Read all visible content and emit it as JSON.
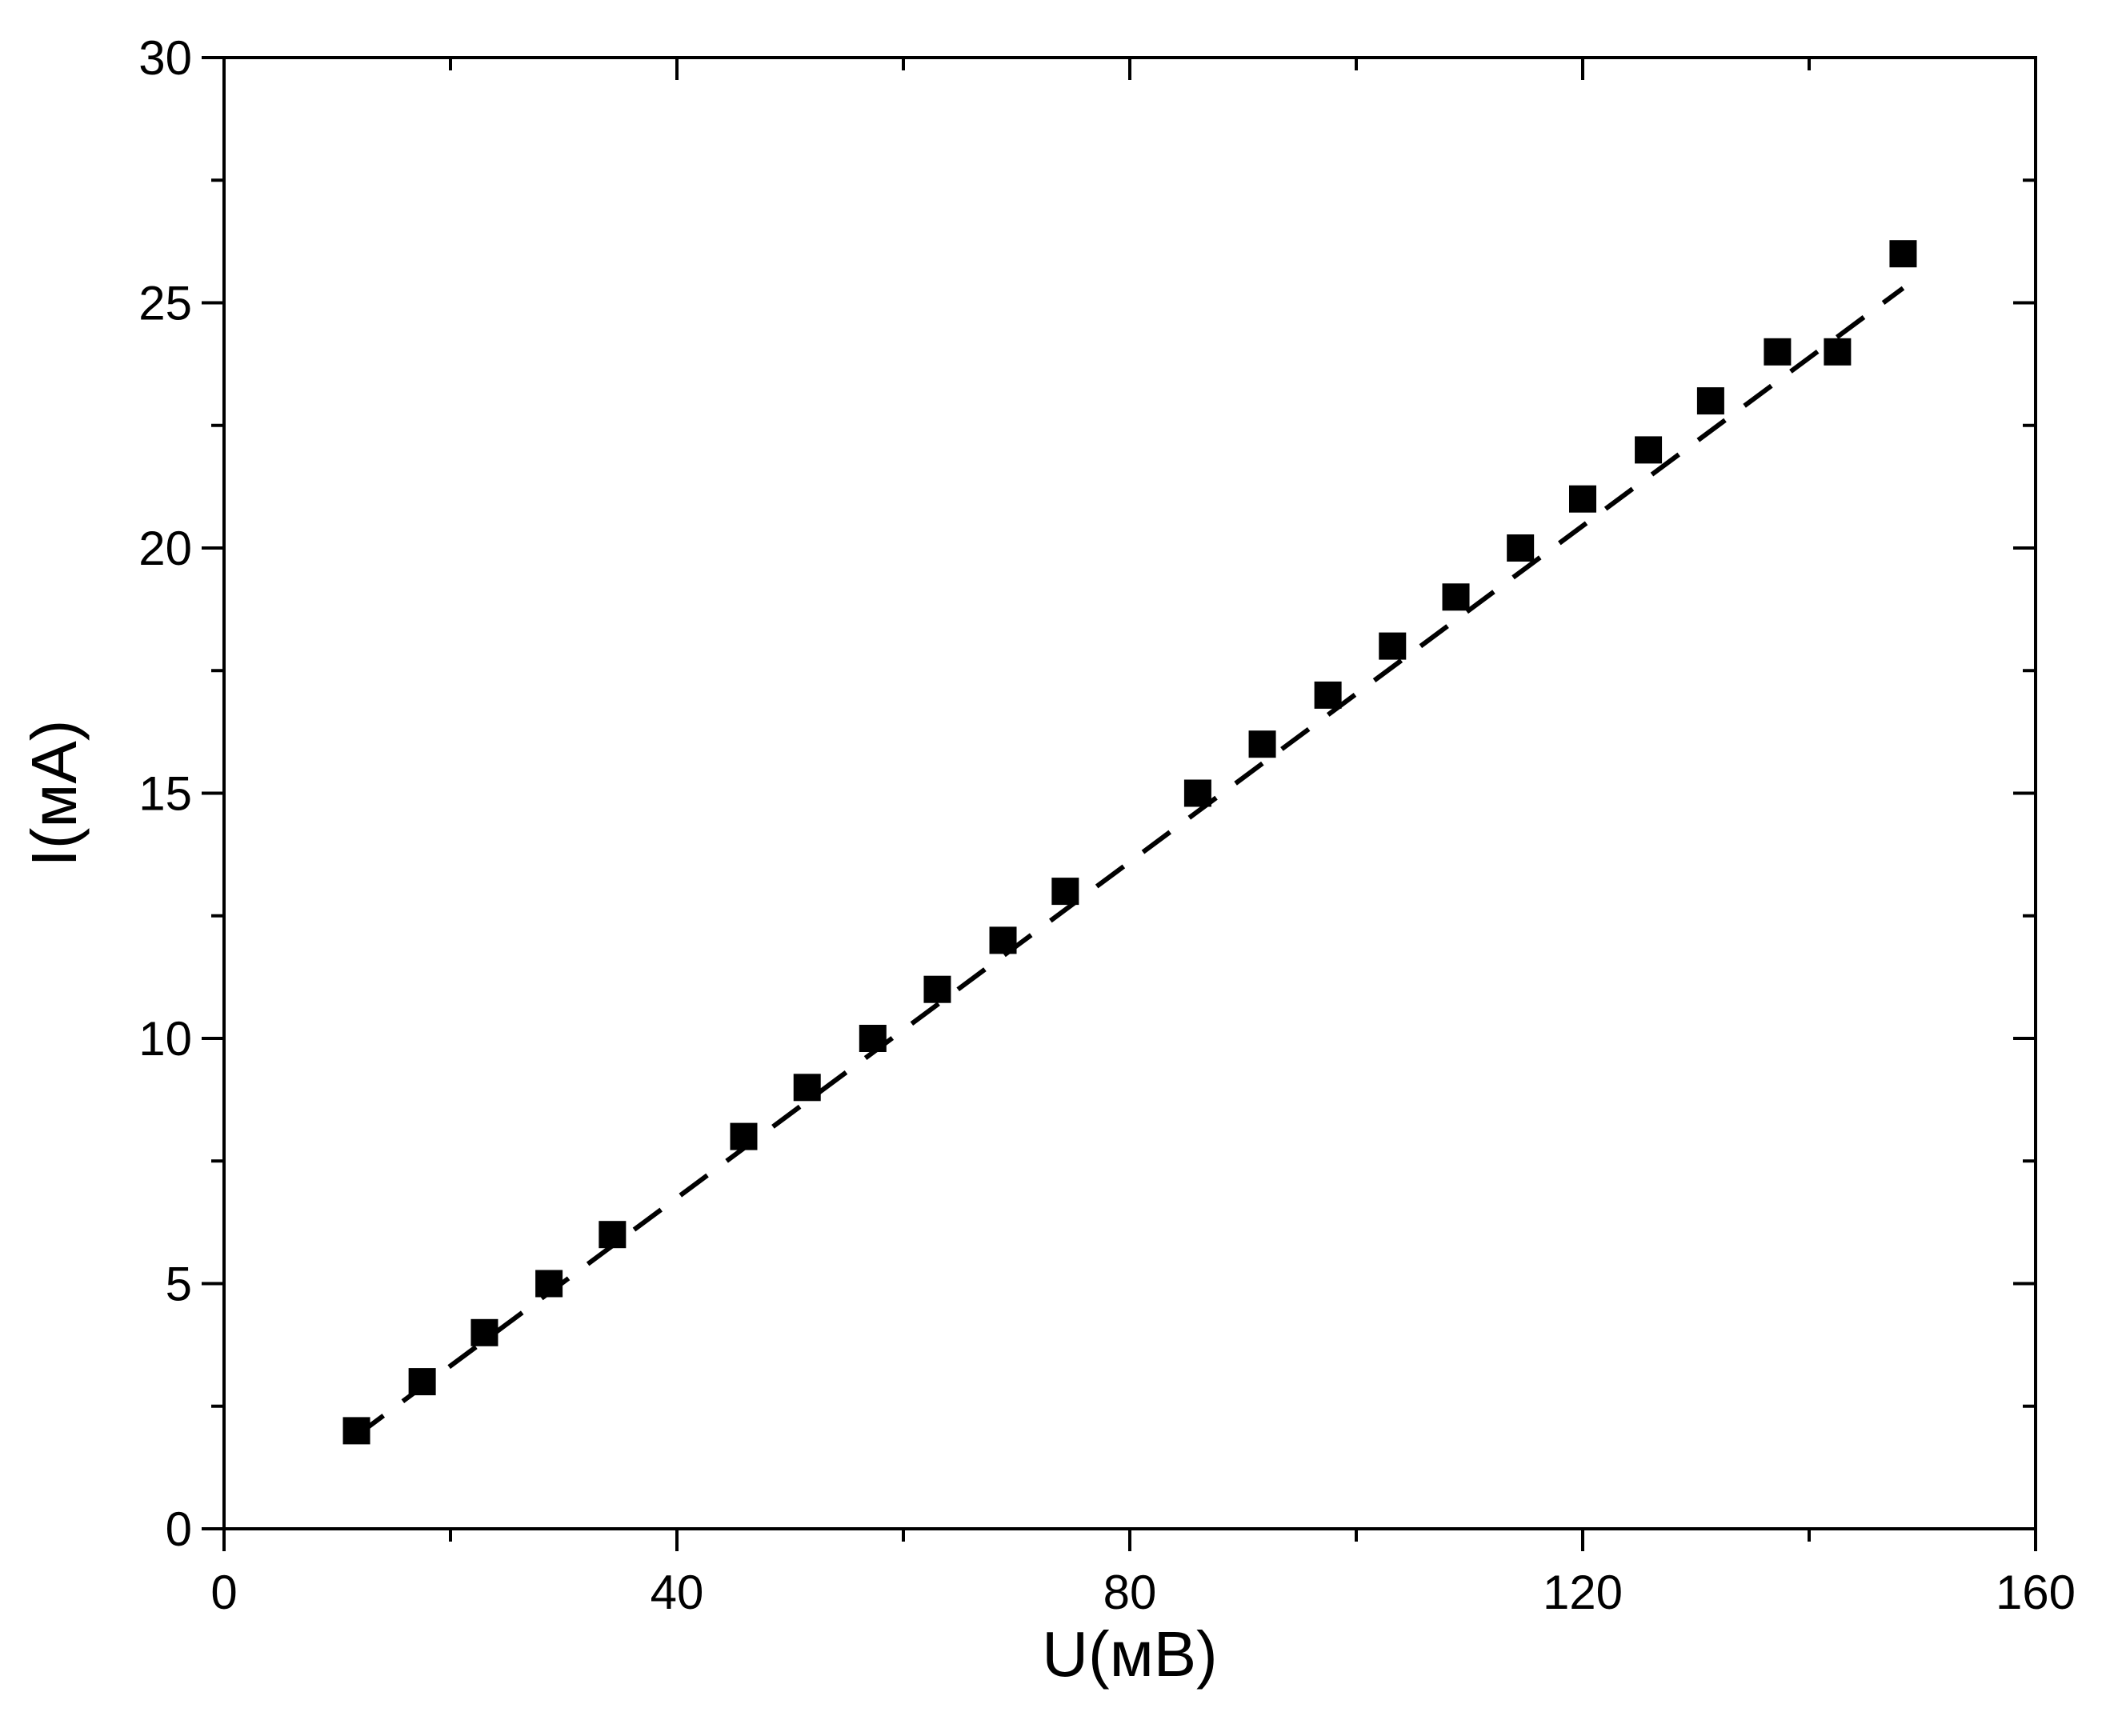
{
  "chart_data": {
    "type": "scatter",
    "xlabel": "U(мВ)",
    "ylabel": "I(мА)",
    "xlim": [
      0,
      160
    ],
    "ylim": [
      0,
      30
    ],
    "x_ticks": [
      0,
      40,
      80,
      120,
      160
    ],
    "x_tick_labels": [
      "0",
      "40",
      "80",
      "120",
      "160"
    ],
    "y_ticks": [
      0,
      5,
      10,
      15,
      20,
      25,
      30
    ],
    "y_tick_labels": [
      "0",
      "5",
      "10",
      "15",
      "20",
      "25",
      "30"
    ],
    "grid": false,
    "legend": "none",
    "colors": {
      "points": "#000000",
      "line": "#000000",
      "axis": "#000000"
    },
    "series": [
      {
        "marker": "square",
        "x": [
          11.7,
          17.5,
          23.0,
          28.7,
          34.3,
          45.9,
          51.5,
          57.3,
          63.0,
          68.8,
          74.3,
          86.0,
          91.7,
          97.5,
          103.2,
          108.8,
          114.5,
          120.0,
          125.8,
          131.3,
          137.2,
          142.5,
          148.3
        ],
        "y": [
          2,
          3,
          4,
          5,
          6,
          8,
          9,
          10,
          11,
          12,
          13,
          15,
          16,
          17,
          18,
          19,
          20,
          21,
          22,
          23,
          24,
          24,
          26
        ]
      }
    ],
    "fit_line": {
      "style": "dashed",
      "x": [
        11.7,
        148.3
      ],
      "y": [
        1.9,
        25.3
      ]
    }
  }
}
